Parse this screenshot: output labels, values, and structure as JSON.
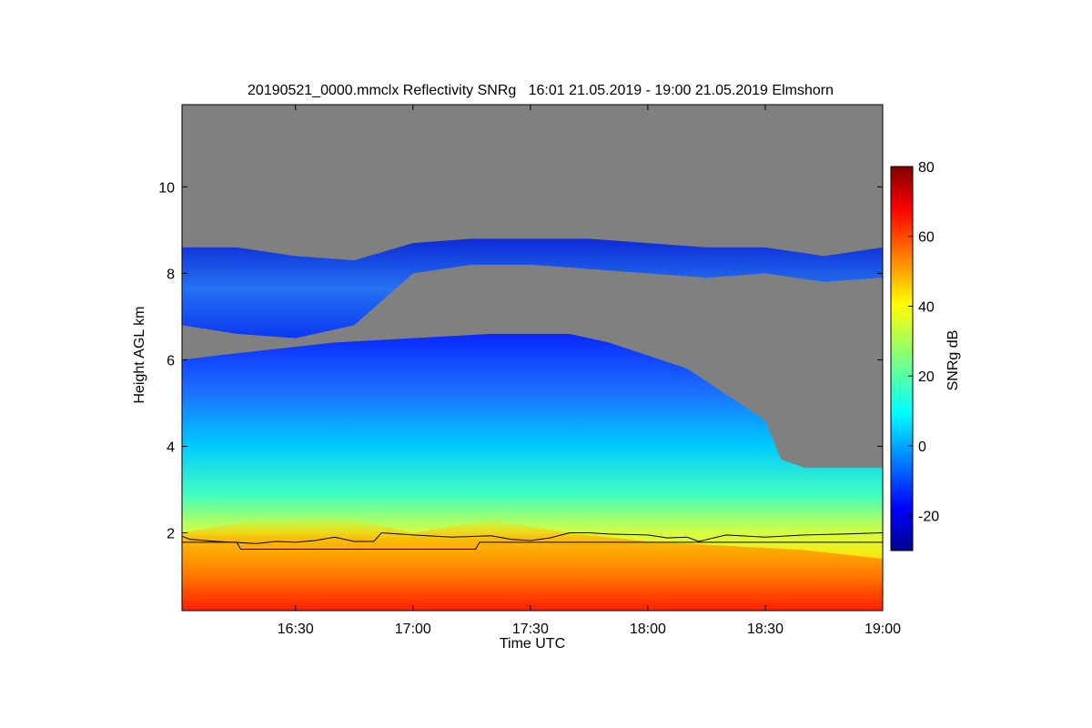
{
  "chart_data": {
    "type": "heatmap",
    "title": "20190521_0000.mmclx Reflectivity SNRg   16:01 21.05.2019 - 19:00 21.05.2019 Elmshorn",
    "xlabel": "Time UTC",
    "ylabel": "Height AGL km",
    "x_ticks": [
      "16:30",
      "17:00",
      "17:30",
      "18:00",
      "18:30",
      "19:00"
    ],
    "x_tick_values_min": [
      990,
      1020,
      1050,
      1080,
      1110,
      1140
    ],
    "xlim_min": [
      961,
      1140
    ],
    "y_ticks": [
      "2",
      "4",
      "6",
      "8",
      "10"
    ],
    "y_tick_values": [
      2,
      4,
      6,
      8,
      10
    ],
    "ylim": [
      0.2,
      11.9
    ],
    "colorbar": {
      "label": "SNRg dB",
      "ticks": [
        "-20",
        "0",
        "20",
        "40",
        "60",
        "80"
      ],
      "tick_values": [
        -20,
        0,
        20,
        40,
        60,
        80
      ],
      "range": [
        -30,
        80
      ],
      "colormap": "jet"
    },
    "background_color": "#808080",
    "cloud_top_km": {
      "time_min": [
        961,
        970,
        980,
        990,
        1000,
        1010,
        1020,
        1030,
        1040,
        1050,
        1060,
        1070,
        1080,
        1090,
        1100,
        1110,
        1114,
        1117,
        1120,
        1130,
        1140
      ],
      "height": [
        6.0,
        6.1,
        6.2,
        6.3,
        6.4,
        6.45,
        6.5,
        6.55,
        6.6,
        6.6,
        6.6,
        6.4,
        6.1,
        5.8,
        5.2,
        4.6,
        3.7,
        3.6,
        3.5,
        3.5,
        3.5
      ]
    },
    "upper_layer_km": {
      "time_min": [
        961,
        975,
        990,
        1005,
        1020,
        1035,
        1050,
        1065,
        1080,
        1095,
        1110,
        1125,
        1140
      ],
      "bottom": [
        6.8,
        6.6,
        6.5,
        6.8,
        8.0,
        8.2,
        8.2,
        8.1,
        8.0,
        7.9,
        8.0,
        7.8,
        7.9
      ],
      "top": [
        8.6,
        8.6,
        8.4,
        8.3,
        8.7,
        8.8,
        8.8,
        8.8,
        8.7,
        8.6,
        8.6,
        8.4,
        8.6
      ]
    },
    "high_snr_layer_km": {
      "time_min": [
        961,
        980,
        1000,
        1020,
        1040,
        1060,
        1080,
        1100,
        1120,
        1140
      ],
      "top": [
        2.0,
        2.3,
        2.4,
        2.0,
        2.3,
        2.0,
        1.8,
        1.7,
        1.6,
        1.4
      ]
    },
    "lines": [
      {
        "time_min": [
          961,
          963,
          970,
          980,
          985,
          990,
          995,
          1000,
          1005,
          1010,
          1012,
          1020,
          1030,
          1040,
          1045,
          1050,
          1055,
          1060,
          1065,
          1070,
          1080,
          1085,
          1090,
          1093,
          1100,
          1110,
          1120,
          1130,
          1140
        ],
        "height": [
          1.92,
          1.85,
          1.8,
          1.75,
          1.8,
          1.78,
          1.82,
          1.9,
          1.8,
          1.8,
          2.0,
          1.95,
          1.9,
          1.93,
          1.85,
          1.82,
          1.88,
          2.0,
          2.0,
          1.97,
          1.95,
          1.88,
          1.9,
          1.8,
          1.95,
          1.9,
          1.95,
          1.97,
          2.0
        ]
      },
      {
        "time_min": [
          961,
          975,
          976,
          1036,
          1037,
          1140
        ],
        "height": [
          1.78,
          1.78,
          1.62,
          1.62,
          1.78,
          1.78
        ]
      }
    ]
  }
}
